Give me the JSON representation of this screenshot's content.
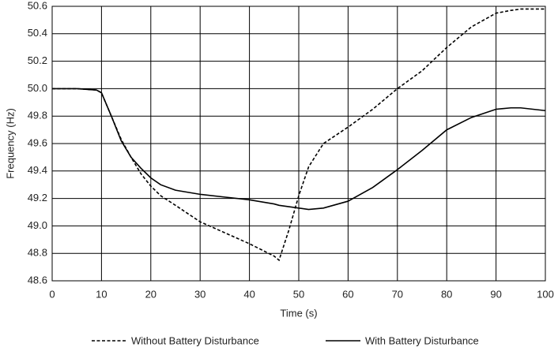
{
  "chart_data": {
    "type": "line",
    "x_label": "Time (s)",
    "y_label": "Frequency (Hz)",
    "x": [
      0,
      5,
      9,
      10,
      12,
      14,
      16,
      18,
      20,
      22,
      25,
      30,
      35,
      40,
      45,
      46,
      48,
      50,
      52,
      55,
      60,
      65,
      70,
      75,
      80,
      85,
      90,
      93,
      95,
      100
    ],
    "series": [
      {
        "name": "Without Battery Disturbance",
        "color": "#000000",
        "style": "dashed",
        "values": [
          50,
          50,
          49.99,
          49.97,
          49.8,
          49.63,
          49.5,
          49.38,
          49.29,
          49.22,
          49.15,
          49.03,
          48.95,
          48.87,
          48.78,
          48.75,
          48.97,
          49.22,
          49.43,
          49.6,
          49.72,
          49.85,
          50.0,
          50.13,
          50.3,
          50.45,
          50.55,
          50.57,
          50.58,
          50.58
        ]
      },
      {
        "name": "With Battery Disturbance",
        "color": "#000000",
        "style": "solid",
        "values": [
          50,
          50,
          49.99,
          49.97,
          49.8,
          49.62,
          49.5,
          49.42,
          49.35,
          49.3,
          49.26,
          49.23,
          49.21,
          49.19,
          49.16,
          49.15,
          49.14,
          49.13,
          49.12,
          49.13,
          49.18,
          49.28,
          49.41,
          49.55,
          49.7,
          49.79,
          49.85,
          49.86,
          49.86,
          49.84
        ]
      }
    ],
    "xlim": [
      0,
      100
    ],
    "xticks": [
      0,
      10,
      20,
      30,
      40,
      50,
      60,
      70,
      80,
      90,
      100
    ],
    "ylim": [
      48.6,
      50.6
    ],
    "yticks": [
      48.6,
      48.8,
      {
        "value": 49,
        "label": "49.0"
      },
      49.2,
      49.4,
      49.6,
      49.8,
      {
        "value": 50,
        "label": "50.0"
      },
      50.2,
      50.4,
      50.6
    ],
    "grid": true,
    "legend": "bottom"
  }
}
